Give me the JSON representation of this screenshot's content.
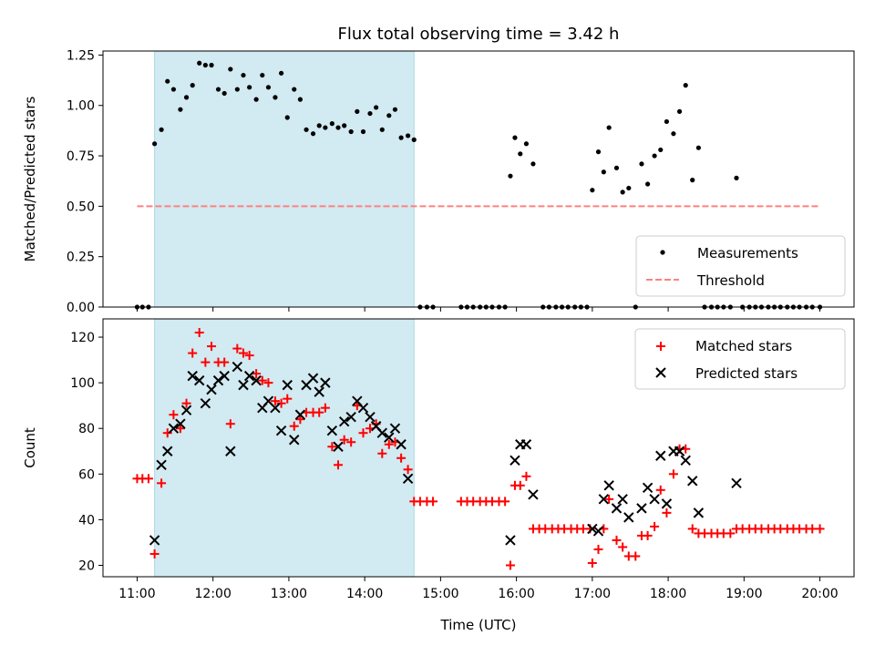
{
  "chart_data": {
    "title": "Flux total observing time = 3.42 h",
    "xlabel": "Time (UTC)",
    "x_ticks": [
      "11:00",
      "12:00",
      "13:00",
      "14:00",
      "15:00",
      "16:00",
      "17:00",
      "18:00",
      "19:00",
      "20:00"
    ],
    "xlim_hours": [
      10.55,
      20.45
    ],
    "shaded_span_hours": [
      11.23,
      14.65
    ],
    "shaded_color": "#add8e6",
    "top": {
      "type": "scatter",
      "ylabel": "Matched/Predicted stars",
      "ylim": [
        0,
        1.27
      ],
      "y_ticks": [
        "0.00",
        "0.25",
        "0.50",
        "0.75",
        "1.00",
        "1.25"
      ],
      "y_tick_values": [
        0,
        0.25,
        0.5,
        0.75,
        1.0,
        1.25
      ],
      "threshold": {
        "name": "Threshold",
        "value": 0.5,
        "x_range": [
          11.0,
          20.0
        ],
        "color": "#ff8080"
      },
      "measurements": {
        "name": "Measurements",
        "color": "#000000",
        "points": [
          [
            11.0,
            0
          ],
          [
            11.07,
            0
          ],
          [
            11.15,
            0
          ],
          [
            11.23,
            0.81
          ],
          [
            11.32,
            0.88
          ],
          [
            11.4,
            1.12
          ],
          [
            11.48,
            1.08
          ],
          [
            11.57,
            0.98
          ],
          [
            11.65,
            1.04
          ],
          [
            11.73,
            1.1
          ],
          [
            11.82,
            1.21
          ],
          [
            11.9,
            1.2
          ],
          [
            11.98,
            1.2
          ],
          [
            12.07,
            1.08
          ],
          [
            12.15,
            1.06
          ],
          [
            12.23,
            1.18
          ],
          [
            12.32,
            1.08
          ],
          [
            12.4,
            1.15
          ],
          [
            12.48,
            1.09
          ],
          [
            12.57,
            1.03
          ],
          [
            12.65,
            1.15
          ],
          [
            12.73,
            1.09
          ],
          [
            12.82,
            1.04
          ],
          [
            12.9,
            1.16
          ],
          [
            12.98,
            0.94
          ],
          [
            13.07,
            1.08
          ],
          [
            13.15,
            1.03
          ],
          [
            13.23,
            0.88
          ],
          [
            13.32,
            0.86
          ],
          [
            13.4,
            0.9
          ],
          [
            13.48,
            0.89
          ],
          [
            13.57,
            0.91
          ],
          [
            13.65,
            0.89
          ],
          [
            13.73,
            0.9
          ],
          [
            13.82,
            0.87
          ],
          [
            13.9,
            0.97
          ],
          [
            13.98,
            0.87
          ],
          [
            14.07,
            0.96
          ],
          [
            14.15,
            0.99
          ],
          [
            14.23,
            0.88
          ],
          [
            14.32,
            0.95
          ],
          [
            14.4,
            0.98
          ],
          [
            14.48,
            0.84
          ],
          [
            14.57,
            0.85
          ],
          [
            14.65,
            0.83
          ],
          [
            14.73,
            0
          ],
          [
            14.82,
            0
          ],
          [
            14.9,
            0
          ],
          [
            15.27,
            0
          ],
          [
            15.35,
            0
          ],
          [
            15.43,
            0
          ],
          [
            15.52,
            0
          ],
          [
            15.6,
            0
          ],
          [
            15.68,
            0
          ],
          [
            15.77,
            0
          ],
          [
            15.85,
            0
          ],
          [
            15.92,
            0.65
          ],
          [
            15.98,
            0.84
          ],
          [
            16.05,
            0.76
          ],
          [
            16.13,
            0.81
          ],
          [
            16.22,
            0.71
          ],
          [
            16.35,
            0
          ],
          [
            16.43,
            0
          ],
          [
            16.52,
            0
          ],
          [
            16.6,
            0
          ],
          [
            16.68,
            0
          ],
          [
            16.77,
            0
          ],
          [
            16.85,
            0
          ],
          [
            16.93,
            0
          ],
          [
            17.0,
            0.58
          ],
          [
            17.08,
            0.77
          ],
          [
            17.15,
            0.67
          ],
          [
            17.22,
            0.89
          ],
          [
            17.32,
            0.69
          ],
          [
            17.4,
            0.57
          ],
          [
            17.48,
            0.59
          ],
          [
            17.57,
            0
          ],
          [
            17.65,
            0.71
          ],
          [
            17.73,
            0.61
          ],
          [
            17.82,
            0.75
          ],
          [
            17.9,
            0.78
          ],
          [
            17.98,
            0.92
          ],
          [
            18.07,
            0.86
          ],
          [
            18.15,
            0.97
          ],
          [
            18.23,
            1.1
          ],
          [
            18.32,
            0.63
          ],
          [
            18.4,
            0.79
          ],
          [
            18.48,
            0
          ],
          [
            18.57,
            0
          ],
          [
            18.65,
            0
          ],
          [
            18.73,
            0
          ],
          [
            18.82,
            0
          ],
          [
            18.9,
            0.64
          ],
          [
            18.98,
            0
          ],
          [
            19.07,
            0
          ],
          [
            19.15,
            0
          ],
          [
            19.23,
            0
          ],
          [
            19.32,
            0
          ],
          [
            19.4,
            0
          ],
          [
            19.48,
            0
          ],
          [
            19.57,
            0
          ],
          [
            19.65,
            0
          ],
          [
            19.73,
            0
          ],
          [
            19.82,
            0
          ],
          [
            19.9,
            0
          ],
          [
            20.0,
            0
          ]
        ]
      },
      "legend": {
        "placement": "lower-right",
        "entries": [
          "Measurements",
          "Threshold"
        ]
      }
    },
    "bottom": {
      "type": "scatter",
      "ylabel": "Count",
      "ylim": [
        15,
        128
      ],
      "y_ticks": [
        "20",
        "40",
        "60",
        "80",
        "100",
        "120"
      ],
      "y_tick_values": [
        20,
        40,
        60,
        80,
        100,
        120
      ],
      "matched": {
        "name": "Matched stars",
        "marker": "plus",
        "color": "#ff0000",
        "points": [
          [
            11.0,
            58
          ],
          [
            11.07,
            58
          ],
          [
            11.15,
            58
          ],
          [
            11.23,
            25
          ],
          [
            11.32,
            56
          ],
          [
            11.4,
            78
          ],
          [
            11.48,
            86
          ],
          [
            11.57,
            80
          ],
          [
            11.65,
            91
          ],
          [
            11.73,
            113
          ],
          [
            11.82,
            122
          ],
          [
            11.9,
            109
          ],
          [
            11.98,
            116
          ],
          [
            12.07,
            109
          ],
          [
            12.15,
            109
          ],
          [
            12.23,
            82
          ],
          [
            12.32,
            115
          ],
          [
            12.4,
            113
          ],
          [
            12.48,
            112
          ],
          [
            12.57,
            104
          ],
          [
            12.65,
            101
          ],
          [
            12.73,
            100
          ],
          [
            12.82,
            92
          ],
          [
            12.9,
            91
          ],
          [
            12.98,
            93
          ],
          [
            13.07,
            81
          ],
          [
            13.15,
            84
          ],
          [
            13.23,
            87
          ],
          [
            13.32,
            87
          ],
          [
            13.4,
            87
          ],
          [
            13.48,
            89
          ],
          [
            13.57,
            72
          ],
          [
            13.65,
            64
          ],
          [
            13.73,
            75
          ],
          [
            13.82,
            74
          ],
          [
            13.9,
            90
          ],
          [
            13.98,
            78
          ],
          [
            14.07,
            80
          ],
          [
            14.15,
            82
          ],
          [
            14.23,
            69
          ],
          [
            14.32,
            73
          ],
          [
            14.4,
            74
          ],
          [
            14.48,
            67
          ],
          [
            14.57,
            62
          ],
          [
            14.65,
            48
          ],
          [
            14.73,
            48
          ],
          [
            14.82,
            48
          ],
          [
            14.9,
            48
          ],
          [
            15.27,
            48
          ],
          [
            15.35,
            48
          ],
          [
            15.43,
            48
          ],
          [
            15.52,
            48
          ],
          [
            15.6,
            48
          ],
          [
            15.68,
            48
          ],
          [
            15.77,
            48
          ],
          [
            15.85,
            48
          ],
          [
            15.92,
            20
          ],
          [
            15.98,
            55
          ],
          [
            16.05,
            55
          ],
          [
            16.13,
            59
          ],
          [
            16.22,
            36
          ],
          [
            16.3,
            36
          ],
          [
            16.38,
            36
          ],
          [
            16.47,
            36
          ],
          [
            16.55,
            36
          ],
          [
            16.63,
            36
          ],
          [
            16.72,
            36
          ],
          [
            16.8,
            36
          ],
          [
            16.88,
            36
          ],
          [
            16.97,
            36
          ],
          [
            17.0,
            21
          ],
          [
            17.08,
            27
          ],
          [
            17.15,
            36
          ],
          [
            17.22,
            49
          ],
          [
            17.32,
            31
          ],
          [
            17.4,
            28
          ],
          [
            17.48,
            24
          ],
          [
            17.57,
            24
          ],
          [
            17.65,
            33
          ],
          [
            17.73,
            33
          ],
          [
            17.82,
            37
          ],
          [
            17.9,
            53
          ],
          [
            17.98,
            43
          ],
          [
            18.07,
            60
          ],
          [
            18.15,
            71
          ],
          [
            18.23,
            71
          ],
          [
            18.32,
            36
          ],
          [
            18.4,
            34
          ],
          [
            18.48,
            34
          ],
          [
            18.57,
            34
          ],
          [
            18.65,
            34
          ],
          [
            18.73,
            34
          ],
          [
            18.82,
            34
          ],
          [
            18.9,
            36
          ],
          [
            18.98,
            36
          ],
          [
            19.07,
            36
          ],
          [
            19.15,
            36
          ],
          [
            19.23,
            36
          ],
          [
            19.32,
            36
          ],
          [
            19.4,
            36
          ],
          [
            19.48,
            36
          ],
          [
            19.57,
            36
          ],
          [
            19.65,
            36
          ],
          [
            19.73,
            36
          ],
          [
            19.82,
            36
          ],
          [
            19.9,
            36
          ],
          [
            20.0,
            36
          ]
        ]
      },
      "predicted": {
        "name": "Predicted stars",
        "marker": "x",
        "color": "#000000",
        "points": [
          [
            11.23,
            31
          ],
          [
            11.32,
            64
          ],
          [
            11.4,
            70
          ],
          [
            11.48,
            80
          ],
          [
            11.57,
            82
          ],
          [
            11.65,
            88
          ],
          [
            11.73,
            103
          ],
          [
            11.82,
            101
          ],
          [
            11.9,
            91
          ],
          [
            11.98,
            97
          ],
          [
            12.07,
            101
          ],
          [
            12.15,
            103
          ],
          [
            12.23,
            70
          ],
          [
            12.32,
            107
          ],
          [
            12.4,
            99
          ],
          [
            12.48,
            103
          ],
          [
            12.57,
            101
          ],
          [
            12.65,
            89
          ],
          [
            12.73,
            92
          ],
          [
            12.82,
            89
          ],
          [
            12.9,
            79
          ],
          [
            12.98,
            99
          ],
          [
            13.07,
            75
          ],
          [
            13.15,
            86
          ],
          [
            13.23,
            99
          ],
          [
            13.32,
            102
          ],
          [
            13.4,
            96
          ],
          [
            13.48,
            100
          ],
          [
            13.57,
            79
          ],
          [
            13.65,
            72
          ],
          [
            13.73,
            83
          ],
          [
            13.82,
            85
          ],
          [
            13.9,
            92
          ],
          [
            13.98,
            89
          ],
          [
            14.07,
            85
          ],
          [
            14.15,
            81
          ],
          [
            14.23,
            78
          ],
          [
            14.32,
            76
          ],
          [
            14.4,
            80
          ],
          [
            14.48,
            73
          ],
          [
            14.57,
            58
          ],
          [
            15.92,
            31
          ],
          [
            15.98,
            66
          ],
          [
            16.05,
            73
          ],
          [
            16.13,
            73
          ],
          [
            16.22,
            51
          ],
          [
            17.0,
            36
          ],
          [
            17.08,
            35
          ],
          [
            17.15,
            49
          ],
          [
            17.22,
            55
          ],
          [
            17.32,
            45
          ],
          [
            17.4,
            49
          ],
          [
            17.48,
            41
          ],
          [
            17.65,
            45
          ],
          [
            17.73,
            54
          ],
          [
            17.82,
            49
          ],
          [
            17.9,
            68
          ],
          [
            17.98,
            47
          ],
          [
            18.07,
            70
          ],
          [
            18.15,
            70
          ],
          [
            18.23,
            66
          ],
          [
            18.32,
            57
          ],
          [
            18.4,
            43
          ],
          [
            18.9,
            56
          ]
        ]
      },
      "legend": {
        "placement": "upper-right",
        "entries": [
          "Matched stars",
          "Predicted stars"
        ]
      }
    }
  }
}
